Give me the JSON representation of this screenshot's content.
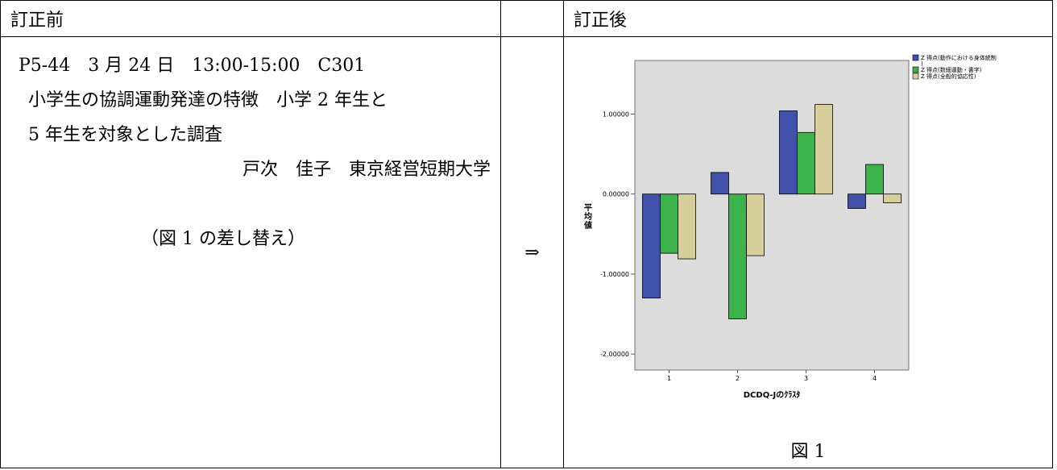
{
  "header": {
    "before": "訂正前",
    "after": "訂正後"
  },
  "before": {
    "session_line": "P5-44　3 月 24 日　13:00-15:00　C301",
    "title_line1": "小学生の協調運動発達の特徴　小学 2 年生と",
    "title_line2": "5 年生を対象とした調査",
    "author": "戸次　佳子　東京経営短期大学",
    "note": "（図 1 の差し替え）"
  },
  "arrow": "⇒",
  "figure_caption": "図 1",
  "chart_data": {
    "type": "bar",
    "xlabel": "DCDQ-Jのｸﾗｽﾀ",
    "ylabel": "平均値",
    "categories": [
      "1",
      "2",
      "3",
      "4"
    ],
    "yticks": [
      "1.00000",
      "0.00000",
      "-1.00000",
      "-2.00000"
    ],
    "ylim": [
      -2.2,
      1.67
    ],
    "legend_position": "top-right",
    "series": [
      {
        "name": "Z 得点(動作における身体統制)",
        "color": "#3f51a8",
        "values": [
          -1.3,
          0.27,
          1.04,
          -0.18
        ]
      },
      {
        "name": "Z 得点(数細運動・書字)",
        "color": "#3bb24a",
        "values": [
          -0.74,
          -1.56,
          0.77,
          0.37
        ]
      },
      {
        "name": "Z 得点(全般的協応性)",
        "color": "#d6cf9c",
        "values": [
          -0.81,
          -0.77,
          1.12,
          -0.11
        ]
      }
    ]
  }
}
